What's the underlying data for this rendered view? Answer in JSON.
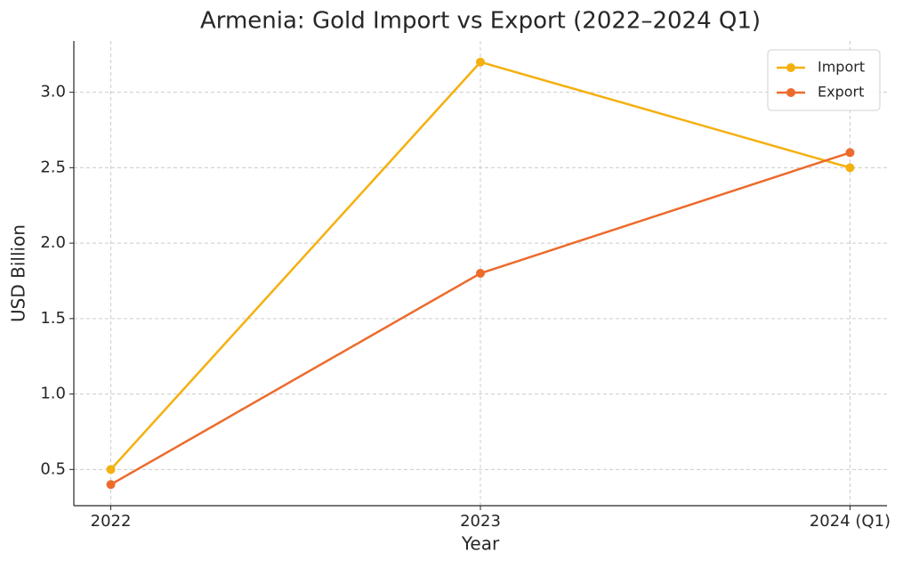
{
  "chart_data": {
    "type": "line",
    "title": "Armenia: Gold Import vs Export (2022–2024 Q1)",
    "x_label": "Year",
    "y_label": "USD Billion",
    "categories": [
      "2022",
      "2023",
      "2024 (Q1)"
    ],
    "series": [
      {
        "name": "Import",
        "color": "#f5b00f",
        "values": [
          0.5,
          3.2,
          2.5
        ]
      },
      {
        "name": "Export",
        "color": "#ec6b2c",
        "values": [
          0.4,
          1.8,
          2.6
        ]
      }
    ],
    "ylim": [
      0.26,
      3.34
    ],
    "yticks": [
      0.5,
      {
        "value": 1.0,
        "label": "1.0"
      },
      1.5,
      {
        "value": 2.0,
        "label": "2.0"
      },
      2.5,
      {
        "value": 3.0,
        "label": "3.0"
      }
    ],
    "grid": true,
    "legend": "upper right"
  }
}
